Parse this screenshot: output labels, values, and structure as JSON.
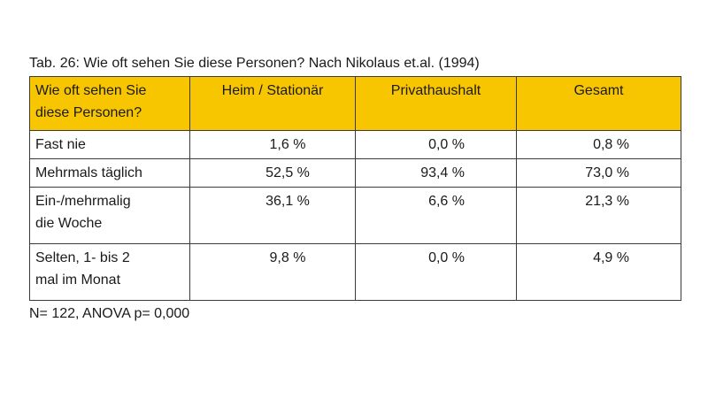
{
  "caption": "Tab. 26: Wie oft sehen Sie diese Personen? Nach Nikolaus et.al. (1994)",
  "table": {
    "headers": [
      [
        "Wie oft sehen Sie",
        "diese Personen?"
      ],
      [
        "Heim / Stationär"
      ],
      [
        "Privathaushalt"
      ],
      [
        "Gesamt"
      ]
    ],
    "rows": [
      {
        "label": [
          "Fast nie"
        ],
        "values": [
          "1,6 %",
          "0,0 %",
          "0,8 %"
        ]
      },
      {
        "label": [
          "Mehrmals täglich"
        ],
        "values": [
          "52,5 %",
          "93,4 %",
          "73,0 %"
        ]
      },
      {
        "label": [
          "Ein-/mehrmalig",
          "die Woche"
        ],
        "values": [
          "36,1 %",
          "6,6 %",
          "21,3 %"
        ]
      },
      {
        "label": [
          "Selten, 1- bis 2",
          "mal im Monat"
        ],
        "values": [
          "9,8 %",
          "0,0 %",
          "4,9 %"
        ]
      }
    ]
  },
  "footnote": "N= 122, ANOVA p= 0,000",
  "colors": {
    "header_background": "#f7c600",
    "border": "#3a3a3a"
  }
}
